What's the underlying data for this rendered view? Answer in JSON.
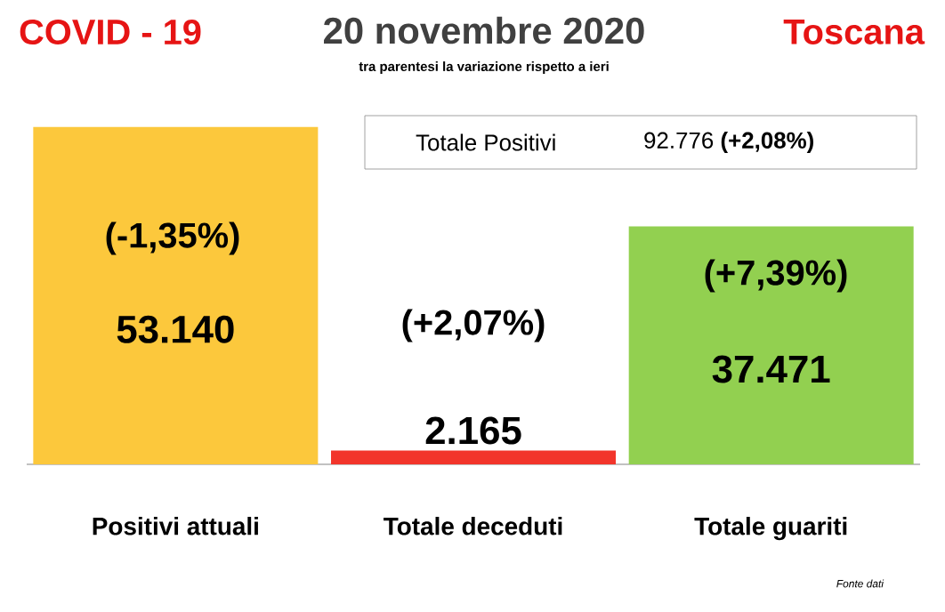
{
  "chart_data": {
    "type": "bar",
    "title": "20 novembre 2020",
    "subtitle": "tra parentesi la variazione rispetto a ieri",
    "categories": [
      "Positivi attuali",
      "Totale deceduti",
      "Totale guariti"
    ],
    "values": [
      53140,
      2165,
      37471
    ],
    "colors": [
      "#fcc83c",
      "#f2352b",
      "#92d050"
    ],
    "value_labels": [
      "53.140",
      "2.165",
      "37.471"
    ],
    "annotations": [
      "COVID - 19",
      "Toscana",
      "Totale Positivi",
      "92.776 **(+2,08%)**",
      "(-1,35%)",
      "(+2,07%)",
      "(+7,39%)",
      "Fonte dati"
    ]
  }
}
